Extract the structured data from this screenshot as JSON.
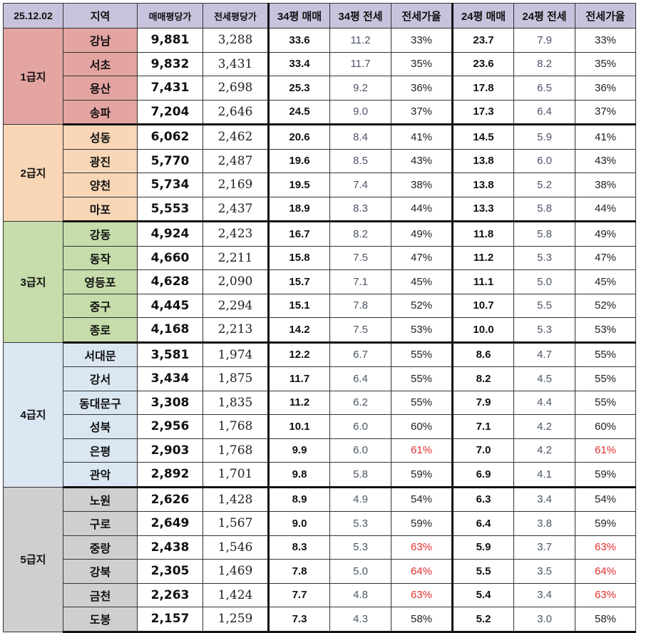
{
  "header": {
    "date": "25.12.02",
    "region": "지역",
    "sale_per_pyeong": "매매평당가",
    "jeonse_per_pyeong": "전세평당가",
    "p34_sale": "34평 매매",
    "p34_jeonse": "34평 전세",
    "ratio_a": "전세가율",
    "p24_sale": "24평 매매",
    "p24_jeonse": "24평 전세",
    "ratio_b": "전세가율"
  },
  "colors": {
    "header_bg": "#c9c2dd",
    "tier1": "#e4a4a2",
    "tier1_region": "#e4a4a2",
    "tier2": "#f8d6b6",
    "tier3": "#c6dcaa",
    "tier4": "#dbe6f3",
    "tier5": "#cfcfcf",
    "highlight": "#e0302d"
  },
  "groups": [
    {
      "tier": "1급지",
      "rows": [
        {
          "region": "강남",
          "sale": "9,881",
          "jeonse": "3,288",
          "s34": "33.6",
          "j34": "11.2",
          "r34": "33%",
          "s24": "23.7",
          "j24": "7.9",
          "r24": "33%"
        },
        {
          "region": "서초",
          "sale": "9,832",
          "jeonse": "3,431",
          "s34": "33.4",
          "j34": "11.7",
          "r34": "35%",
          "s24": "23.6",
          "j24": "8.2",
          "r24": "35%"
        },
        {
          "region": "용산",
          "sale": "7,431",
          "jeonse": "2,698",
          "s34": "25.3",
          "j34": "9.2",
          "r34": "36%",
          "s24": "17.8",
          "j24": "6.5",
          "r24": "36%"
        },
        {
          "region": "송파",
          "sale": "7,204",
          "jeonse": "2,646",
          "s34": "24.5",
          "j34": "9.0",
          "r34": "37%",
          "s24": "17.3",
          "j24": "6.4",
          "r24": "37%"
        }
      ]
    },
    {
      "tier": "2급지",
      "rows": [
        {
          "region": "성동",
          "sale": "6,062",
          "jeonse": "2,462",
          "s34": "20.6",
          "j34": "8.4",
          "r34": "41%",
          "s24": "14.5",
          "j24": "5.9",
          "r24": "41%"
        },
        {
          "region": "광진",
          "sale": "5,770",
          "jeonse": "2,487",
          "s34": "19.6",
          "j34": "8.5",
          "r34": "43%",
          "s24": "13.8",
          "j24": "6.0",
          "r24": "43%"
        },
        {
          "region": "양천",
          "sale": "5,734",
          "jeonse": "2,169",
          "s34": "19.5",
          "j34": "7.4",
          "r34": "38%",
          "s24": "13.8",
          "j24": "5.2",
          "r24": "38%"
        },
        {
          "region": "마포",
          "sale": "5,553",
          "jeonse": "2,437",
          "s34": "18.9",
          "j34": "8.3",
          "r34": "44%",
          "s24": "13.3",
          "j24": "5.8",
          "r24": "44%"
        }
      ]
    },
    {
      "tier": "3급지",
      "rows": [
        {
          "region": "강동",
          "sale": "4,924",
          "jeonse": "2,423",
          "s34": "16.7",
          "j34": "8.2",
          "r34": "49%",
          "s24": "11.8",
          "j24": "5.8",
          "r24": "49%"
        },
        {
          "region": "동작",
          "sale": "4,660",
          "jeonse": "2,211",
          "s34": "15.8",
          "j34": "7.5",
          "r34": "47%",
          "s24": "11.2",
          "j24": "5.3",
          "r24": "47%"
        },
        {
          "region": "영등포",
          "sale": "4,628",
          "jeonse": "2,090",
          "s34": "15.7",
          "j34": "7.1",
          "r34": "45%",
          "s24": "11.1",
          "j24": "5.0",
          "r24": "45%"
        },
        {
          "region": "중구",
          "sale": "4,445",
          "jeonse": "2,294",
          "s34": "15.1",
          "j34": "7.8",
          "r34": "52%",
          "s24": "10.7",
          "j24": "5.5",
          "r24": "52%"
        },
        {
          "region": "종로",
          "sale": "4,168",
          "jeonse": "2,213",
          "s34": "14.2",
          "j34": "7.5",
          "r34": "53%",
          "s24": "10.0",
          "j24": "5.3",
          "r24": "53%"
        }
      ]
    },
    {
      "tier": "4급지",
      "rows": [
        {
          "region": "서대문",
          "sale": "3,581",
          "jeonse": "1,974",
          "s34": "12.2",
          "j34": "6.7",
          "r34": "55%",
          "s24": "8.6",
          "j24": "4.7",
          "r24": "55%"
        },
        {
          "region": "강서",
          "sale": "3,434",
          "jeonse": "1,875",
          "s34": "11.7",
          "j34": "6.4",
          "r34": "55%",
          "s24": "8.2",
          "j24": "4.5",
          "r24": "55%"
        },
        {
          "region": "동대문구",
          "sale": "3,308",
          "jeonse": "1,835",
          "s34": "11.2",
          "j34": "6.2",
          "r34": "55%",
          "s24": "7.9",
          "j24": "4.4",
          "r24": "55%"
        },
        {
          "region": "성북",
          "sale": "2,956",
          "jeonse": "1,768",
          "s34": "10.1",
          "j34": "6.0",
          "r34": "60%",
          "s24": "7.1",
          "j24": "4.2",
          "r24": "60%"
        },
        {
          "region": "은평",
          "sale": "2,903",
          "jeonse": "1,768",
          "s34": "9.9",
          "j34": "6.0",
          "r34": "61%",
          "s24": "7.0",
          "j24": "4.2",
          "r24": "61%",
          "highlight": true
        },
        {
          "region": "관악",
          "sale": "2,892",
          "jeonse": "1,701",
          "s34": "9.8",
          "j34": "5.8",
          "r34": "59%",
          "s24": "6.9",
          "j24": "4.1",
          "r24": "59%"
        }
      ]
    },
    {
      "tier": "5급지",
      "rows": [
        {
          "region": "노원",
          "sale": "2,626",
          "jeonse": "1,428",
          "s34": "8.9",
          "j34": "4.9",
          "r34": "54%",
          "s24": "6.3",
          "j24": "3.4",
          "r24": "54%"
        },
        {
          "region": "구로",
          "sale": "2,649",
          "jeonse": "1,567",
          "s34": "9.0",
          "j34": "5.3",
          "r34": "59%",
          "s24": "6.4",
          "j24": "3.8",
          "r24": "59%"
        },
        {
          "region": "중랑",
          "sale": "2,438",
          "jeonse": "1,546",
          "s34": "8.3",
          "j34": "5.3",
          "r34": "63%",
          "s24": "5.9",
          "j24": "3.7",
          "r24": "63%",
          "highlight": true
        },
        {
          "region": "강북",
          "sale": "2,305",
          "jeonse": "1,469",
          "s34": "7.8",
          "j34": "5.0",
          "r34": "64%",
          "s24": "5.5",
          "j24": "3.5",
          "r24": "64%",
          "highlight": true
        },
        {
          "region": "금천",
          "sale": "2,263",
          "jeonse": "1,424",
          "s34": "7.7",
          "j34": "4.8",
          "r34": "63%",
          "s24": "5.4",
          "j24": "3.4",
          "r24": "63%",
          "highlight": true
        },
        {
          "region": "도봉",
          "sale": "2,157",
          "jeonse": "1,259",
          "s34": "7.3",
          "j34": "4.3",
          "r34": "58%",
          "s24": "5.2",
          "j24": "3.0",
          "r24": "58%"
        }
      ]
    }
  ]
}
